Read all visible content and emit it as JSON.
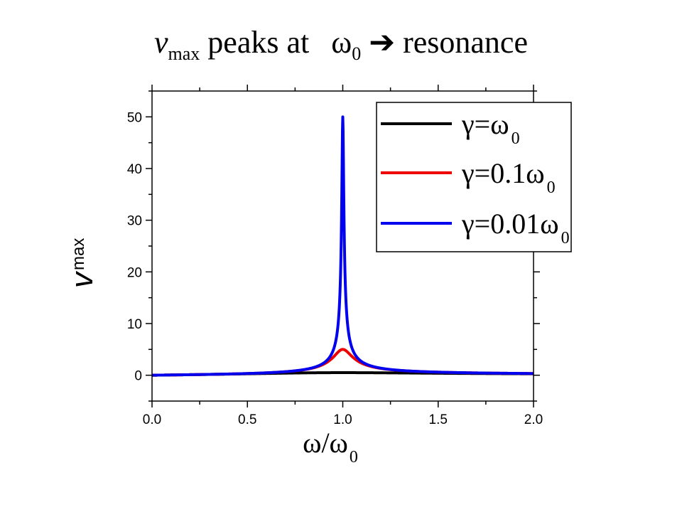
{
  "title": {
    "main": "v",
    "main_sub": "max",
    "rest": "peaks at",
    "omega": "ω",
    "omega_sub": "0",
    "arrow": "➔",
    "tail": "resonance"
  },
  "chart_data": {
    "type": "line",
    "xlabel": "ω/ω",
    "xlabel_sub": "0",
    "ylabel": "v",
    "ylabel_sub": "max",
    "xlim": [
      0.0,
      2.0
    ],
    "ylim": [
      -5,
      55
    ],
    "xticks": [
      "0.0",
      "0.5",
      "1.0",
      "1.5",
      "2.0"
    ],
    "yticks": [
      "0",
      "10",
      "20",
      "30",
      "40",
      "50"
    ],
    "grid": false,
    "legend_position": "top-right",
    "series": [
      {
        "name": "γ=ω",
        "name_sub": "0",
        "gamma": 1.0,
        "color": "#000000"
      },
      {
        "name": "γ=0.1ω",
        "name_sub": "0",
        "gamma": 0.1,
        "color": "#ee0000"
      },
      {
        "name": "γ=0.01ω",
        "name_sub": "0",
        "gamma": 0.01,
        "color": "#0000ee"
      }
    ]
  }
}
